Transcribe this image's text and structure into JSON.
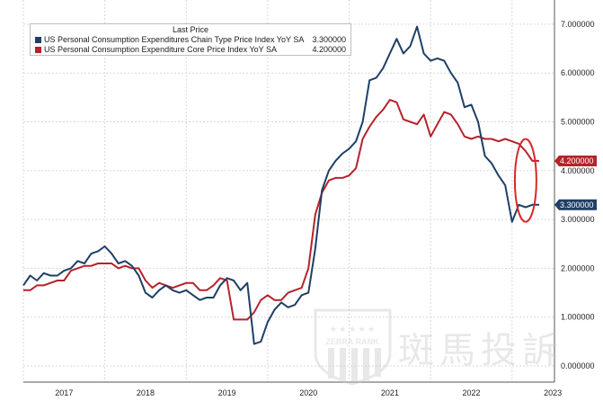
{
  "chart_data": {
    "type": "line",
    "title": "",
    "xlabel": "",
    "ylabel": "",
    "ylim": [
      0,
      7.5
    ],
    "y_ticks": [
      "0.000000",
      "1.000000",
      "2.000000",
      "3.000000",
      "4.000000",
      "5.000000",
      "6.000000",
      "7.000000"
    ],
    "y_tick_values": [
      0,
      1,
      2,
      3,
      4,
      5,
      6,
      7
    ],
    "x_tick_labels": [
      "2017",
      "2018",
      "2019",
      "2020",
      "2021",
      "2022",
      "2023"
    ],
    "grid": "on",
    "legend_placement": "top-left",
    "legend_title": "Last Price",
    "series": [
      {
        "name": "US Personal Consumption Expenditures Chain Type Price Index YoY SA",
        "last_value_label": "3.300000",
        "color": "#1f3f66",
        "x": [
          "2017-01",
          "2017-02",
          "2017-03",
          "2017-04",
          "2017-05",
          "2017-06",
          "2017-07",
          "2017-08",
          "2017-09",
          "2017-10",
          "2017-11",
          "2017-12",
          "2018-01",
          "2018-02",
          "2018-03",
          "2018-04",
          "2018-05",
          "2018-06",
          "2018-07",
          "2018-08",
          "2018-09",
          "2018-10",
          "2018-11",
          "2018-12",
          "2019-01",
          "2019-02",
          "2019-03",
          "2019-04",
          "2019-05",
          "2019-06",
          "2019-07",
          "2019-08",
          "2019-09",
          "2019-10",
          "2019-11",
          "2019-12",
          "2020-01",
          "2020-02",
          "2020-03",
          "2020-04",
          "2020-05",
          "2020-06",
          "2020-07",
          "2020-08",
          "2020-09",
          "2020-10",
          "2020-11",
          "2020-12",
          "2021-01",
          "2021-02",
          "2021-03",
          "2021-04",
          "2021-05",
          "2021-06",
          "2021-07",
          "2021-08",
          "2021-09",
          "2021-10",
          "2021-11",
          "2021-12",
          "2022-01",
          "2022-02",
          "2022-03",
          "2022-04",
          "2022-05",
          "2022-06",
          "2022-07",
          "2022-08",
          "2022-09",
          "2022-10",
          "2022-11",
          "2022-12",
          "2023-01",
          "2023-02",
          "2023-03",
          "2023-04",
          "2023-05"
        ],
        "values": [
          1.65,
          1.85,
          1.75,
          1.9,
          1.85,
          1.85,
          1.95,
          2.0,
          2.15,
          2.1,
          2.3,
          2.35,
          2.45,
          2.3,
          2.1,
          2.15,
          2.05,
          1.85,
          1.5,
          1.4,
          1.55,
          1.65,
          1.55,
          1.5,
          1.55,
          1.45,
          1.35,
          1.4,
          1.4,
          1.65,
          1.8,
          1.75,
          1.55,
          1.7,
          0.45,
          0.5,
          0.9,
          1.15,
          1.3,
          1.2,
          1.25,
          1.45,
          1.5,
          2.4,
          3.6,
          4.0,
          4.2,
          4.35,
          4.45,
          4.6,
          5.0,
          5.85,
          5.9,
          6.1,
          6.4,
          6.7,
          6.4,
          6.55,
          6.95,
          6.4,
          6.25,
          6.3,
          6.25,
          6.0,
          5.8,
          5.3,
          5.35,
          5.0,
          4.3,
          4.15,
          3.9,
          3.7,
          2.95,
          3.3,
          3.25,
          3.3,
          3.3
        ]
      },
      {
        "name": "US Personal Consumption Expenditure Core Price Index YoY SA",
        "last_value_label": "4.200000",
        "color": "#b5232b",
        "x": [
          "2017-01",
          "2017-02",
          "2017-03",
          "2017-04",
          "2017-05",
          "2017-06",
          "2017-07",
          "2017-08",
          "2017-09",
          "2017-10",
          "2017-11",
          "2017-12",
          "2018-01",
          "2018-02",
          "2018-03",
          "2018-04",
          "2018-05",
          "2018-06",
          "2018-07",
          "2018-08",
          "2018-09",
          "2018-10",
          "2018-11",
          "2018-12",
          "2019-01",
          "2019-02",
          "2019-03",
          "2019-04",
          "2019-05",
          "2019-06",
          "2019-07",
          "2019-08",
          "2019-09",
          "2019-10",
          "2019-11",
          "2019-12",
          "2020-01",
          "2020-02",
          "2020-03",
          "2020-04",
          "2020-05",
          "2020-06",
          "2020-07",
          "2020-08",
          "2020-09",
          "2020-10",
          "2020-11",
          "2020-12",
          "2021-01",
          "2021-02",
          "2021-03",
          "2021-04",
          "2021-05",
          "2021-06",
          "2021-07",
          "2021-08",
          "2021-09",
          "2021-10",
          "2021-11",
          "2021-12",
          "2022-01",
          "2022-02",
          "2022-03",
          "2022-04",
          "2022-05",
          "2022-06",
          "2022-07",
          "2022-08",
          "2022-09",
          "2022-10",
          "2022-11",
          "2022-12",
          "2023-01",
          "2023-02",
          "2023-03",
          "2023-04",
          "2023-05"
        ],
        "values": [
          1.55,
          1.55,
          1.65,
          1.65,
          1.7,
          1.75,
          1.75,
          1.95,
          2.0,
          2.05,
          2.05,
          2.1,
          2.1,
          2.1,
          2.0,
          2.05,
          2.0,
          2.0,
          1.75,
          1.6,
          1.7,
          1.65,
          1.6,
          1.65,
          1.7,
          1.7,
          1.55,
          1.55,
          1.65,
          1.8,
          1.75,
          0.95,
          0.95,
          0.95,
          1.1,
          1.35,
          1.45,
          1.35,
          1.35,
          1.5,
          1.55,
          1.6,
          2.0,
          3.1,
          3.55,
          3.8,
          3.85,
          3.85,
          3.9,
          4.05,
          4.65,
          4.9,
          5.1,
          5.25,
          5.45,
          5.4,
          5.05,
          5.0,
          4.95,
          5.15,
          4.7,
          4.95,
          5.2,
          5.15,
          4.95,
          4.7,
          4.65,
          4.7,
          4.65,
          4.65,
          4.6,
          4.65,
          4.6,
          4.55,
          4.4,
          4.2,
          4.2
        ]
      }
    ]
  },
  "watermark": {
    "brand_text": "ZEBRA RANK",
    "chinese_text": "斑馬投訴"
  }
}
